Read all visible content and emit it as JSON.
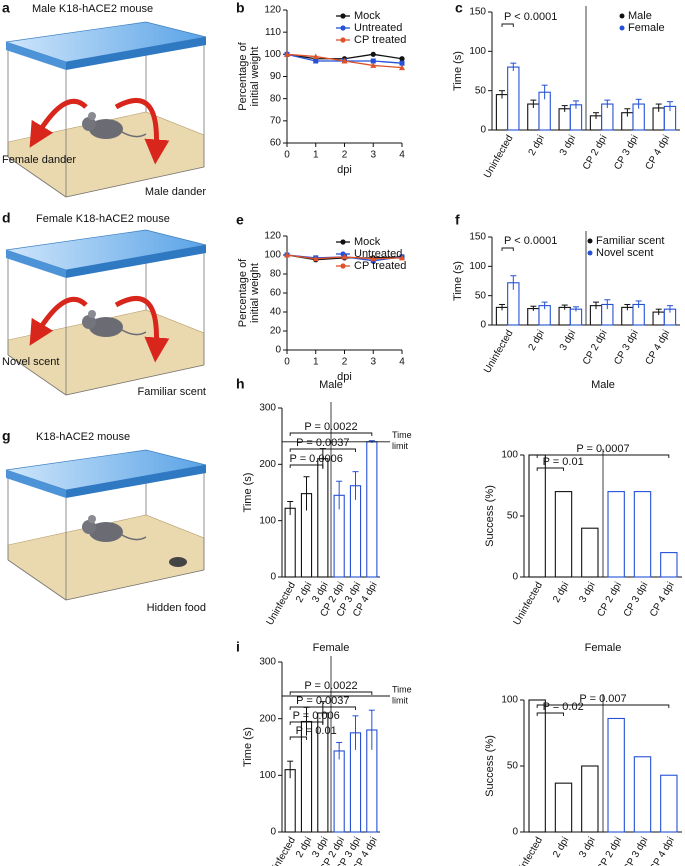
{
  "illustrations": [
    {
      "panel": "a",
      "title": "Male K18-hACE2 mouse",
      "labels": [
        "Female dander",
        "Male dander"
      ]
    },
    {
      "panel": "d",
      "title": "Female K18-hACE2 mouse",
      "labels": [
        "Novel scent",
        "Familiar scent"
      ]
    },
    {
      "panel": "g",
      "title": "K18-hACE2 mouse",
      "labels": [
        "Hidden food"
      ]
    }
  ],
  "chart_data": [
    {
      "type": "line",
      "panel": "b",
      "xlabel": "dpi",
      "ylabel": [
        "Percentage of",
        "initial weight"
      ],
      "x": [
        0,
        1,
        2,
        3,
        4
      ],
      "xlim": [
        0,
        4
      ],
      "xticks": [
        0,
        1,
        2,
        3,
        4
      ],
      "ylim": [
        60,
        120
      ],
      "yticks": [
        60,
        70,
        80,
        90,
        100,
        110,
        120
      ],
      "legend": "upper right",
      "series": [
        {
          "name": "Mock",
          "color": "#111111",
          "values": [
            100,
            98,
            98,
            100,
            98
          ]
        },
        {
          "name": "Untreated",
          "color": "#2451d6",
          "values": [
            100,
            97,
            97,
            97,
            96
          ]
        },
        {
          "name": "CP treated",
          "color": "#e0522a",
          "values": [
            100,
            99,
            97,
            95,
            94
          ]
        }
      ]
    },
    {
      "type": "bar",
      "panel": "c",
      "ylabel": "Time (s)",
      "categories": [
        "Uninfected",
        "2 dpi",
        "3 dpi",
        "CP 2 dpi",
        "CP 3 dpi",
        "CP 4 dpi"
      ],
      "ylim": [
        0,
        150
      ],
      "yticks": [
        0,
        50,
        100,
        150
      ],
      "legend": "upper right",
      "series": [
        {
          "name": "Male",
          "color": "#111111",
          "values": [
            45,
            33,
            27,
            18,
            22,
            28
          ],
          "errors": [
            5,
            5,
            4,
            4,
            5,
            5
          ]
        },
        {
          "name": "Female",
          "color": "#2451d6",
          "values": [
            80,
            48,
            32,
            33,
            33,
            30
          ],
          "errors": [
            5,
            9,
            5,
            5,
            6,
            6
          ]
        }
      ],
      "annotations": [
        "P < 0.0001"
      ]
    },
    {
      "type": "line",
      "panel": "e",
      "xlabel": "dpi",
      "ylabel": [
        "Percentage of",
        "initial weight"
      ],
      "x": [
        0,
        1,
        2,
        3,
        4
      ],
      "xlim": [
        0,
        4
      ],
      "xticks": [
        0,
        1,
        2,
        3,
        4
      ],
      "ylim": [
        0,
        120
      ],
      "yticks": [
        0,
        20,
        40,
        60,
        80,
        100,
        120
      ],
      "legend": "upper right",
      "series": [
        {
          "name": "Mock",
          "color": "#111111",
          "values": [
            100,
            95,
            97,
            97,
            98
          ]
        },
        {
          "name": "Untreated",
          "color": "#2451d6",
          "values": [
            100,
            97,
            98,
            94,
            98
          ]
        },
        {
          "name": "CP treated",
          "color": "#e0522a",
          "values": [
            100,
            96,
            98,
            96,
            97
          ]
        }
      ]
    },
    {
      "type": "bar",
      "panel": "f",
      "ylabel": "Time (s)",
      "categories": [
        "Uninfected",
        "2 dpi",
        "3 dpi",
        "CP 2 dpi",
        "CP 3 dpi",
        "CP 4 dpi"
      ],
      "ylim": [
        0,
        150
      ],
      "yticks": [
        0,
        50,
        100,
        150
      ],
      "legend": "upper right",
      "series": [
        {
          "name": "Familiar scent",
          "color": "#111111",
          "values": [
            30,
            28,
            30,
            33,
            30,
            22
          ],
          "errors": [
            5,
            4,
            4,
            6,
            5,
            5
          ]
        },
        {
          "name": "Novel scent",
          "color": "#2451d6",
          "values": [
            72,
            33,
            27,
            35,
            35,
            27
          ],
          "errors": [
            12,
            6,
            4,
            8,
            6,
            6
          ]
        }
      ],
      "annotations": [
        "P < 0.0001"
      ]
    },
    {
      "type": "bar",
      "panel": "h",
      "title": "Male",
      "ylabel": "Time (s)",
      "categories": [
        "Uninfected",
        "2 dpi",
        "3 dpi",
        "CP 2 dpi",
        "CP 3 dpi",
        "CP 4 dpi"
      ],
      "values": [
        122,
        148,
        210,
        145,
        162,
        240
      ],
      "errors": [
        12,
        30,
        18,
        25,
        25,
        2
      ],
      "colors": [
        "#111111",
        "#111111",
        "#111111",
        "#2451d6",
        "#2451d6",
        "#2451d6"
      ],
      "ylim": [
        0,
        300
      ],
      "yticks": [
        0,
        100,
        200,
        300
      ],
      "reference_line": {
        "value": 240,
        "label": [
          "Time",
          "limit"
        ]
      },
      "annotations": [
        "P = 0.0022",
        "P = 0.0037",
        "P = 0.0006"
      ]
    },
    {
      "type": "bar",
      "title": "Male",
      "ylabel": "Success (%)",
      "categories": [
        "Uninfected",
        "2 dpi",
        "3 dpi",
        "CP 2 dpi",
        "CP 3 dpi",
        "CP 4 dpi"
      ],
      "values": [
        100,
        70,
        40,
        70,
        70,
        20
      ],
      "colors": [
        "#111111",
        "#111111",
        "#111111",
        "#2451d6",
        "#2451d6",
        "#2451d6"
      ],
      "ylim": [
        0,
        100
      ],
      "yticks": [
        0,
        50,
        100
      ],
      "annotations": [
        "P = 0.0007",
        "P = 0.01"
      ]
    },
    {
      "type": "bar",
      "panel": "i",
      "title": "Female",
      "ylabel": "Time (s)",
      "categories": [
        "Uninfected",
        "2 dpi",
        "3 dpi",
        "CP 2 dpi",
        "CP 3 dpi",
        "CP 4 dpi"
      ],
      "values": [
        110,
        195,
        210,
        143,
        175,
        180
      ],
      "errors": [
        15,
        25,
        20,
        15,
        30,
        35
      ],
      "colors": [
        "#111111",
        "#111111",
        "#111111",
        "#2451d6",
        "#2451d6",
        "#2451d6"
      ],
      "ylim": [
        0,
        300
      ],
      "yticks": [
        0,
        100,
        200,
        300
      ],
      "reference_line": {
        "value": 240,
        "label": [
          "Time",
          "limit"
        ]
      },
      "annotations": [
        "P = 0.0022",
        "P = 0.0037",
        "P = 0.006",
        "P = 0.01"
      ]
    },
    {
      "type": "bar",
      "title": "Female",
      "ylabel": "Success (%)",
      "categories": [
        "Uninfected",
        "2 dpi",
        "3 dpi",
        "CP 2 dpi",
        "CP 3 dpi",
        "CP 4 dpi"
      ],
      "values": [
        100,
        37,
        50,
        86,
        57,
        43
      ],
      "colors": [
        "#111111",
        "#111111",
        "#111111",
        "#2451d6",
        "#2451d6",
        "#2451d6"
      ],
      "ylim": [
        0,
        100
      ],
      "yticks": [
        0,
        50,
        100
      ],
      "annotations": [
        "P = 0.007",
        "P = 0.02"
      ]
    }
  ]
}
